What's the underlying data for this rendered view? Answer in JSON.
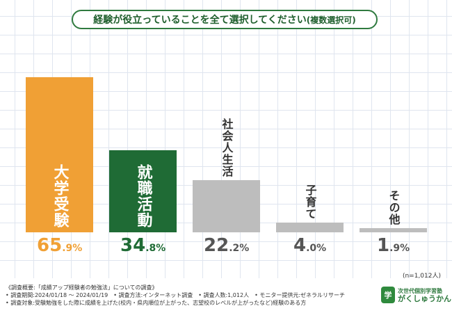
{
  "header": {
    "title": "経験が役立っていることを全て選択してください",
    "title_suffix": "(複数選択可)"
  },
  "chart_data": {
    "type": "bar",
    "title": "経験が役立っていることを全て選択してください(複数選択可)",
    "categories": [
      "大学受験",
      "就職活動",
      "社会人生活",
      "子育て",
      "その他"
    ],
    "values": [
      65.9,
      34.8,
      22.2,
      4.0,
      1.9
    ],
    "value_labels": [
      {
        "int": "65",
        "dec": ".9%"
      },
      {
        "int": "34",
        "dec": ".8%"
      },
      {
        "int": "22",
        "dec": ".2%"
      },
      {
        "int": "4",
        "dec": ".0%"
      },
      {
        "int": "1",
        "dec": ".9%"
      }
    ],
    "colors": [
      "#f0a035",
      "#1f6b35",
      "#bdbdbd",
      "#bdbdbd",
      "#bdbdbd"
    ],
    "label_colors": [
      "#ffffff",
      "#ffffff",
      "#333333",
      "#333333",
      "#333333"
    ],
    "value_colors": [
      "#f0a035",
      "#1f6b35",
      "#555555",
      "#555555",
      "#555555"
    ],
    "ylim": [
      0,
      70
    ],
    "xlabel": "",
    "ylabel": ""
  },
  "footer": {
    "n_label": "(n=1,012人)",
    "notes": [
      "《調査概要:「成績アップ経験者の勉強法」についての調査》",
      "• 調査期間:2024/01/18 〜 2024/01/19　• 調査方法:インターネット調査　• 調査人数:1,012人　• モニター提供元:ゼネラルリサーチ",
      "• 調査対象:受験勉強をした際に成績を上げた(校内・県内順位が上がった、志望校のレベルが上がったなど)経験のある方"
    ]
  },
  "logo": {
    "mark": "学",
    "line1": "次世代個別学習塾",
    "line2": "がくしゅうかん"
  }
}
